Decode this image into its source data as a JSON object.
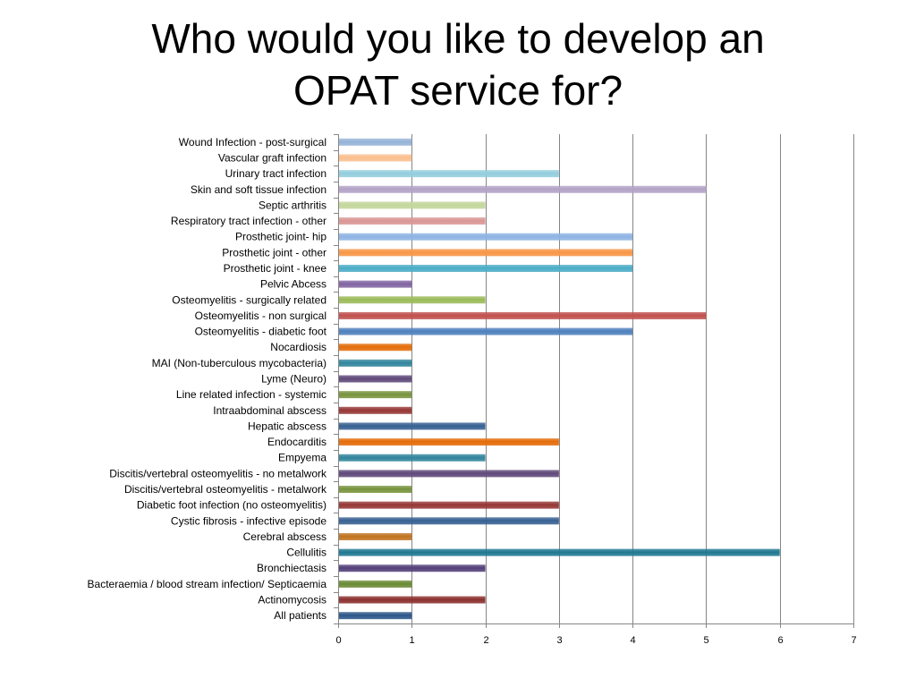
{
  "title_lines": [
    "Who would you like to develop an",
    "OPAT service for?"
  ],
  "chart_data": {
    "type": "bar",
    "orientation": "horizontal",
    "title": "Who would you like to develop an OPAT service for?",
    "xlabel": "",
    "ylabel": "",
    "xlim": [
      0,
      7
    ],
    "x_ticks": [
      "0",
      "1",
      "2",
      "3",
      "4",
      "5",
      "6",
      "7"
    ],
    "grid": true,
    "legend": "none",
    "categories": [
      "Wound Infection - post-surgical",
      "Vascular graft infection",
      "Urinary tract infection",
      "Skin and soft tissue infection",
      "Septic arthritis",
      "Respiratory tract infection - other",
      "Prosthetic joint- hip",
      "Prosthetic joint - other",
      "Prosthetic joint - knee",
      "Pelvic Abcess",
      "Osteomyelitis - surgically related",
      "Osteomyelitis - non surgical",
      "Osteomyelitis - diabetic foot",
      "Nocardiosis",
      "MAI (Non-tuberculous mycobacteria)",
      "Lyme (Neuro)",
      "Line related infection - systemic",
      "Intraabdominal abscess",
      "Hepatic abscess",
      "Endocarditis",
      "Empyema",
      "Discitis/vertebral osteomyelitis - no metalwork",
      "Discitis/vertebral osteomyelitis - metalwork",
      "Diabetic foot infection (no osteomyelitis)",
      "Cystic fibrosis - infective episode",
      "Cerebral abscess",
      "Cellulitis",
      "Bronchiectasis",
      "Bacteraemia / blood stream infection/ Septicaemia",
      "Actinomycosis",
      "All patients"
    ],
    "values": [
      1,
      1,
      3,
      5,
      2,
      2,
      4,
      4,
      4,
      1,
      2,
      5,
      4,
      1,
      1,
      1,
      1,
      1,
      2,
      3,
      2,
      3,
      1,
      3,
      3,
      1,
      6,
      2,
      1,
      2,
      1
    ],
    "colors": [
      "#95b3d7",
      "#fabf8f",
      "#93cddd",
      "#b3a2c7",
      "#c3d69b",
      "#d99694",
      "#8eb4e3",
      "#f79646",
      "#4bacc6",
      "#8064a2",
      "#9bbb59",
      "#c0504d",
      "#4f81bd",
      "#e46c0a",
      "#31859c",
      "#5f497a",
      "#77933c",
      "#953735",
      "#376092",
      "#e46c0a",
      "#31859c",
      "#5f497a",
      "#77933c",
      "#953735",
      "#376092",
      "#c0731f",
      "#1f7891",
      "#54407a",
      "#6a8a34",
      "#8b302d",
      "#2c568a"
    ],
    "gridline_color": "#868686"
  }
}
